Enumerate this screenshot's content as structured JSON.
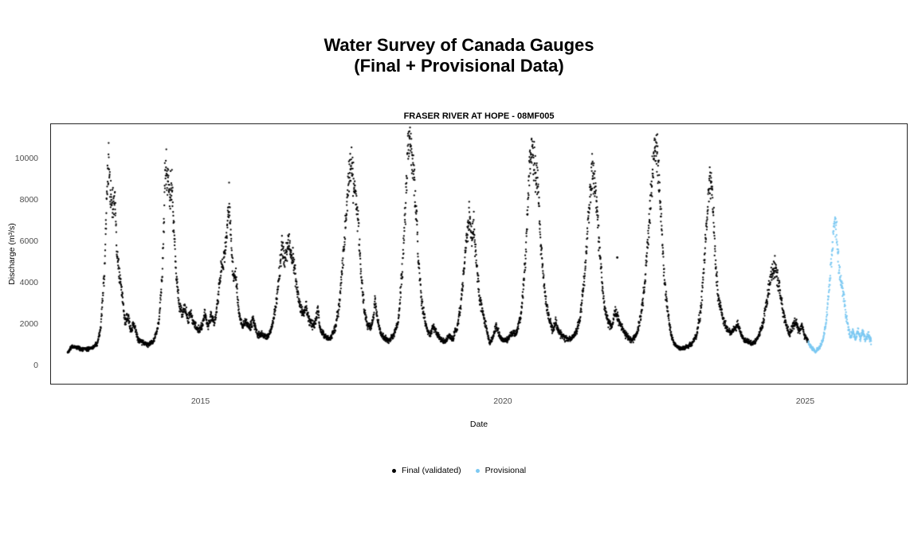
{
  "title": {
    "line1": "Water Survey of Canada Gauges",
    "line2": "(Final + Provisional Data)"
  },
  "chart_data": {
    "type": "scatter",
    "title": "FRASER RIVER AT HOPE - 08MF005",
    "xlabel": "Date",
    "ylabel": "Discharge (m³/s)",
    "grid": false,
    "legend_position": "bottom",
    "xlim": [
      2012.516,
      2026.655
    ],
    "ylim": [
      -800,
      11680
    ],
    "x_ticks": [
      2015,
      2020,
      2025
    ],
    "y_ticks": [
      0,
      2000,
      4000,
      6000,
      8000,
      10000
    ],
    "point_radius_px": 1.15,
    "noise_sd_fraction": 0.05,
    "sampling": "daily",
    "series": [
      {
        "name": "Final (validated)",
        "key": "final",
        "color": "#000000",
        "keypoints": [
          [
            2012.79,
            650
          ],
          [
            2012.84,
            900
          ],
          [
            2012.92,
            950
          ],
          [
            2013.0,
            840
          ],
          [
            2013.1,
            820
          ],
          [
            2013.2,
            900
          ],
          [
            2013.28,
            1050
          ],
          [
            2013.34,
            1900
          ],
          [
            2013.4,
            4600
          ],
          [
            2013.44,
            8200
          ],
          [
            2013.47,
            10200
          ],
          [
            2013.5,
            8100
          ],
          [
            2013.54,
            7700
          ],
          [
            2013.57,
            8100
          ],
          [
            2013.61,
            5300
          ],
          [
            2013.66,
            4100
          ],
          [
            2013.7,
            3300
          ],
          [
            2013.74,
            2100
          ],
          [
            2013.79,
            2400
          ],
          [
            2013.84,
            1700
          ],
          [
            2013.88,
            2100
          ],
          [
            2013.95,
            1350
          ],
          [
            2014.03,
            1150
          ],
          [
            2014.13,
            1050
          ],
          [
            2014.22,
            1250
          ],
          [
            2014.3,
            2100
          ],
          [
            2014.36,
            4600
          ],
          [
            2014.41,
            10000
          ],
          [
            2014.45,
            8900
          ],
          [
            2014.48,
            8300
          ],
          [
            2014.51,
            8800
          ],
          [
            2014.55,
            6600
          ],
          [
            2014.59,
            4200
          ],
          [
            2014.64,
            3000
          ],
          [
            2014.69,
            2500
          ],
          [
            2014.73,
            2750
          ],
          [
            2014.78,
            2300
          ],
          [
            2014.83,
            2550
          ],
          [
            2014.89,
            2000
          ],
          [
            2014.96,
            1750
          ],
          [
            2015.02,
            1950
          ],
          [
            2015.06,
            2650
          ],
          [
            2015.11,
            1900
          ],
          [
            2015.16,
            2450
          ],
          [
            2015.22,
            2050
          ],
          [
            2015.28,
            3300
          ],
          [
            2015.33,
            4700
          ],
          [
            2015.38,
            5100
          ],
          [
            2015.43,
            6600
          ],
          [
            2015.46,
            8000
          ],
          [
            2015.5,
            5700
          ],
          [
            2015.54,
            4200
          ],
          [
            2015.57,
            4500
          ],
          [
            2015.62,
            2600
          ],
          [
            2015.68,
            1950
          ],
          [
            2015.74,
            2150
          ],
          [
            2015.8,
            1850
          ],
          [
            2015.86,
            2250
          ],
          [
            2015.93,
            1550
          ],
          [
            2016.01,
            1500
          ],
          [
            2016.09,
            1400
          ],
          [
            2016.16,
            1750
          ],
          [
            2016.23,
            2900
          ],
          [
            2016.29,
            4400
          ],
          [
            2016.34,
            5900
          ],
          [
            2016.39,
            5000
          ],
          [
            2016.44,
            6050
          ],
          [
            2016.49,
            5400
          ],
          [
            2016.54,
            4800
          ],
          [
            2016.59,
            3600
          ],
          [
            2016.64,
            2800
          ],
          [
            2016.69,
            2500
          ],
          [
            2016.73,
            2950
          ],
          [
            2016.78,
            2250
          ],
          [
            2016.84,
            1950
          ],
          [
            2016.89,
            2150
          ],
          [
            2016.93,
            2750
          ],
          [
            2016.97,
            1750
          ],
          [
            2017.05,
            1450
          ],
          [
            2017.13,
            1300
          ],
          [
            2017.21,
            1750
          ],
          [
            2017.28,
            2900
          ],
          [
            2017.34,
            5000
          ],
          [
            2017.4,
            7400
          ],
          [
            2017.45,
            9200
          ],
          [
            2017.48,
            9900
          ],
          [
            2017.52,
            8800
          ],
          [
            2017.56,
            8100
          ],
          [
            2017.6,
            6700
          ],
          [
            2017.65,
            4300
          ],
          [
            2017.7,
            2600
          ],
          [
            2017.75,
            1950
          ],
          [
            2017.8,
            1850
          ],
          [
            2017.85,
            2400
          ],
          [
            2017.875,
            3350
          ],
          [
            2017.91,
            2350
          ],
          [
            2017.97,
            1550
          ],
          [
            2018.04,
            1350
          ],
          [
            2018.11,
            1250
          ],
          [
            2018.19,
            1550
          ],
          [
            2018.26,
            2200
          ],
          [
            2018.33,
            4800
          ],
          [
            2018.38,
            8000
          ],
          [
            2018.42,
            10600
          ],
          [
            2018.45,
            11300
          ],
          [
            2018.48,
            10300
          ],
          [
            2018.51,
            9600
          ],
          [
            2018.55,
            7600
          ],
          [
            2018.59,
            5100
          ],
          [
            2018.64,
            3300
          ],
          [
            2018.69,
            2300
          ],
          [
            2018.74,
            1750
          ],
          [
            2018.79,
            1550
          ],
          [
            2018.84,
            1950
          ],
          [
            2018.89,
            1650
          ],
          [
            2018.96,
            1300
          ],
          [
            2019.03,
            1200
          ],
          [
            2019.09,
            1450
          ],
          [
            2019.16,
            1350
          ],
          [
            2019.24,
            1950
          ],
          [
            2019.31,
            3400
          ],
          [
            2019.37,
            5600
          ],
          [
            2019.43,
            7300
          ],
          [
            2019.47,
            6300
          ],
          [
            2019.51,
            6700
          ],
          [
            2019.56,
            4700
          ],
          [
            2019.61,
            3100
          ],
          [
            2019.66,
            2600
          ],
          [
            2019.71,
            1950
          ],
          [
            2019.77,
            1100
          ],
          [
            2019.83,
            1450
          ],
          [
            2019.88,
            2000
          ],
          [
            2019.93,
            1500
          ],
          [
            2019.98,
            1250
          ],
          [
            2020.06,
            1250
          ],
          [
            2020.13,
            1550
          ],
          [
            2020.21,
            1650
          ],
          [
            2020.29,
            2500
          ],
          [
            2020.36,
            5000
          ],
          [
            2020.41,
            8500
          ],
          [
            2020.46,
            11000
          ],
          [
            2020.5,
            9900
          ],
          [
            2020.53,
            9200
          ],
          [
            2020.57,
            8700
          ],
          [
            2020.61,
            6300
          ],
          [
            2020.66,
            4200
          ],
          [
            2020.71,
            2950
          ],
          [
            2020.76,
            2200
          ],
          [
            2020.81,
            1750
          ],
          [
            2020.86,
            2100
          ],
          [
            2020.91,
            1700
          ],
          [
            2020.97,
            1450
          ],
          [
            2021.04,
            1350
          ],
          [
            2021.11,
            1300
          ],
          [
            2021.19,
            1550
          ],
          [
            2021.27,
            2400
          ],
          [
            2021.34,
            4400
          ],
          [
            2021.41,
            7500
          ],
          [
            2021.47,
            9800
          ],
          [
            2021.51,
            8700
          ],
          [
            2021.54,
            7700
          ],
          [
            2021.58,
            6000
          ],
          [
            2021.63,
            4000
          ],
          [
            2021.68,
            2700
          ],
          [
            2021.73,
            2100
          ],
          [
            2021.79,
            1950
          ],
          [
            2021.84,
            2600
          ],
          [
            2021.91,
            2200
          ],
          [
            2021.97,
            1750
          ],
          [
            2022.04,
            1450
          ],
          [
            2022.11,
            1250
          ],
          [
            2022.19,
            1450
          ],
          [
            2022.27,
            2400
          ],
          [
            2022.34,
            4200
          ],
          [
            2022.41,
            7000
          ],
          [
            2022.47,
            9700
          ],
          [
            2022.51,
            10500
          ],
          [
            2022.55,
            9700
          ],
          [
            2022.59,
            8100
          ],
          [
            2022.63,
            5600
          ],
          [
            2022.68,
            3500
          ],
          [
            2022.73,
            2250
          ],
          [
            2022.78,
            1400
          ],
          [
            2022.83,
            1050
          ],
          [
            2022.89,
            900
          ],
          [
            2022.96,
            870
          ],
          [
            2023.03,
            960
          ],
          [
            2023.11,
            1060
          ],
          [
            2023.19,
            1450
          ],
          [
            2023.26,
            2700
          ],
          [
            2023.33,
            5400
          ],
          [
            2023.39,
            8400
          ],
          [
            2023.43,
            9100
          ],
          [
            2023.47,
            7300
          ],
          [
            2023.51,
            4900
          ],
          [
            2023.55,
            3300
          ],
          [
            2023.59,
            2900
          ],
          [
            2023.64,
            2200
          ],
          [
            2023.69,
            1850
          ],
          [
            2023.75,
            1600
          ],
          [
            2023.81,
            1750
          ],
          [
            2023.87,
            2050
          ],
          [
            2023.93,
            1500
          ],
          [
            2023.98,
            1250
          ],
          [
            2024.05,
            1180
          ],
          [
            2024.13,
            1120
          ],
          [
            2024.21,
            1420
          ],
          [
            2024.29,
            2050
          ],
          [
            2024.36,
            3250
          ],
          [
            2024.43,
            4350
          ],
          [
            2024.48,
            4800
          ],
          [
            2024.53,
            4150
          ],
          [
            2024.58,
            3400
          ],
          [
            2024.63,
            2500
          ],
          [
            2024.68,
            1900
          ],
          [
            2024.73,
            1550
          ],
          [
            2024.78,
            1950
          ],
          [
            2024.83,
            2150
          ],
          [
            2024.88,
            1750
          ],
          [
            2024.93,
            1950
          ],
          [
            2024.98,
            1450
          ],
          [
            2025.04,
            1180
          ]
        ]
      },
      {
        "name": "Provisional",
        "key": "provisional",
        "color": "#7DC9F2",
        "keypoints": [
          [
            2025.04,
            1150
          ],
          [
            2025.1,
            880
          ],
          [
            2025.16,
            720
          ],
          [
            2025.22,
            880
          ],
          [
            2025.28,
            1250
          ],
          [
            2025.34,
            2300
          ],
          [
            2025.4,
            4300
          ],
          [
            2025.45,
            6300
          ],
          [
            2025.48,
            7050
          ],
          [
            2025.52,
            5900
          ],
          [
            2025.55,
            4500
          ],
          [
            2025.585,
            3900
          ],
          [
            2025.62,
            3600
          ],
          [
            2025.66,
            2500
          ],
          [
            2025.7,
            1850
          ],
          [
            2025.74,
            1400
          ],
          [
            2025.78,
            1650
          ],
          [
            2025.82,
            1300
          ],
          [
            2025.86,
            1750
          ],
          [
            2025.9,
            1350
          ],
          [
            2025.94,
            1650
          ],
          [
            2025.98,
            1250
          ],
          [
            2026.03,
            1550
          ],
          [
            2026.08,
            1200
          ]
        ]
      }
    ],
    "outliers": [
      {
        "series": "final",
        "x": 2021.88,
        "y": 5250
      }
    ],
    "annual_peak_summary": {
      "years": [
        2013,
        2014,
        2015,
        2016,
        2017,
        2018,
        2019,
        2020,
        2021,
        2022,
        2023,
        2024,
        2025
      ],
      "peak_discharge_m3s": [
        10200,
        10000,
        8000,
        6100,
        9900,
        11300,
        7300,
        11000,
        9800,
        10500,
        9100,
        4800,
        7050
      ]
    }
  },
  "legend": {
    "items": [
      {
        "label": "Final (validated)",
        "color": "#000000"
      },
      {
        "label": "Provisional",
        "color": "#7DC9F2"
      }
    ]
  }
}
